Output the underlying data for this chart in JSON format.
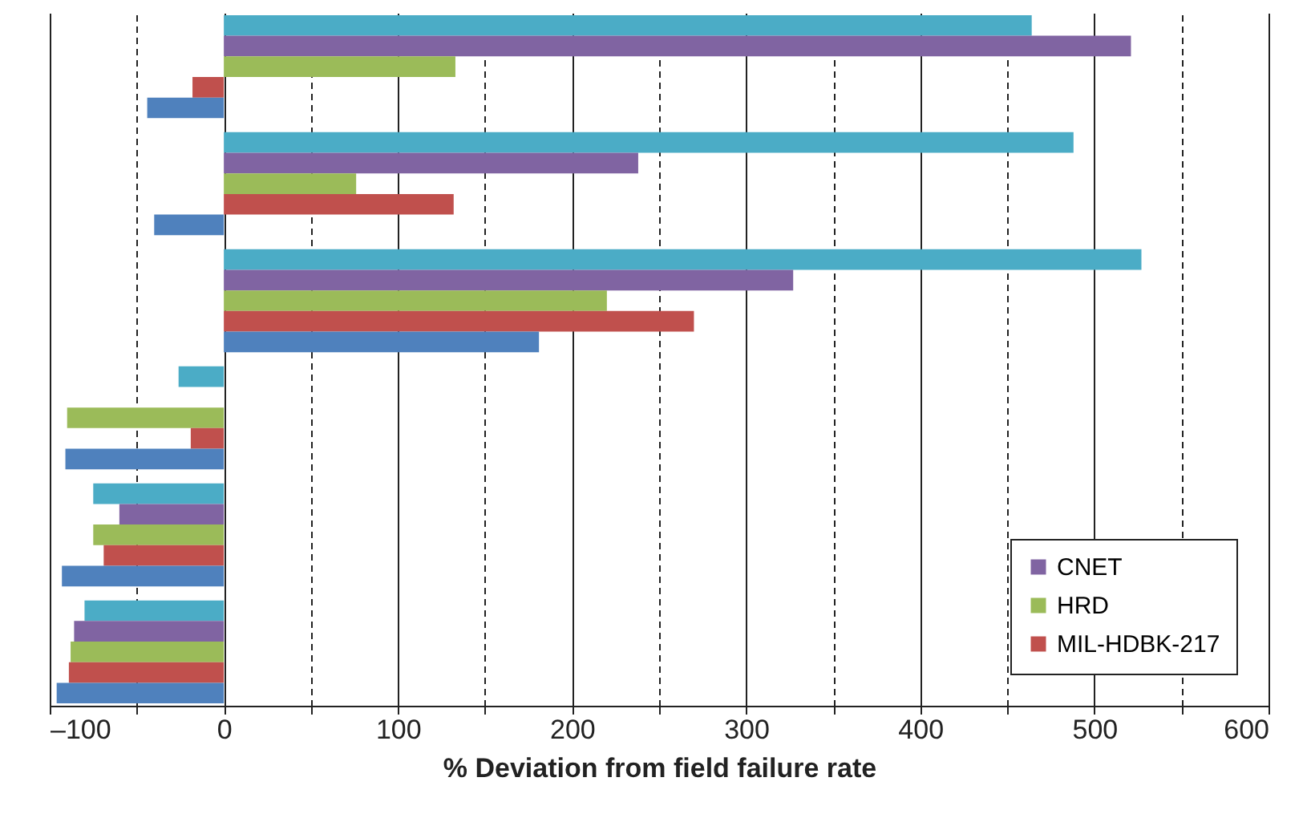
{
  "chart_data": {
    "type": "bar",
    "orientation": "horizontal",
    "xlabel": "% Deviation from field failure rate",
    "categories": [
      null,
      null,
      null,
      null,
      null,
      null
    ],
    "series": [
      {
        "color": "#4bacc6",
        "values": [
          464,
          488,
          527,
          -26,
          -75,
          -80
        ]
      },
      {
        "name": "CNET",
        "color": "#8064a2",
        "values": [
          521,
          238,
          327,
          null,
          -60,
          -86
        ]
      },
      {
        "name": "HRD",
        "color": "#9bbb59",
        "values": [
          133,
          76,
          220,
          -90,
          -75,
          -88
        ]
      },
      {
        "name": "MIL-HDBK-217",
        "color": "#c0504d",
        "values": [
          -18,
          132,
          270,
          -19,
          -69,
          -89
        ]
      },
      {
        "color": "#4f81bd",
        "values": [
          -44,
          -40,
          181,
          -91,
          -93,
          -96
        ]
      }
    ],
    "xlim": [
      -100,
      600
    ],
    "xticks": [
      {
        "value": -100,
        "label": "–100"
      },
      {
        "value": -50,
        "label": null
      },
      0,
      {
        "value": 50,
        "label": null
      },
      100,
      {
        "value": 150,
        "label": null
      },
      200,
      {
        "value": 250,
        "label": null
      },
      300,
      {
        "value": 350,
        "label": null
      },
      400,
      {
        "value": 450,
        "label": null
      },
      500,
      {
        "value": 550,
        "label": null
      },
      600
    ],
    "grid": "x",
    "legend": "bottom right",
    "tick_labels": "x"
  }
}
